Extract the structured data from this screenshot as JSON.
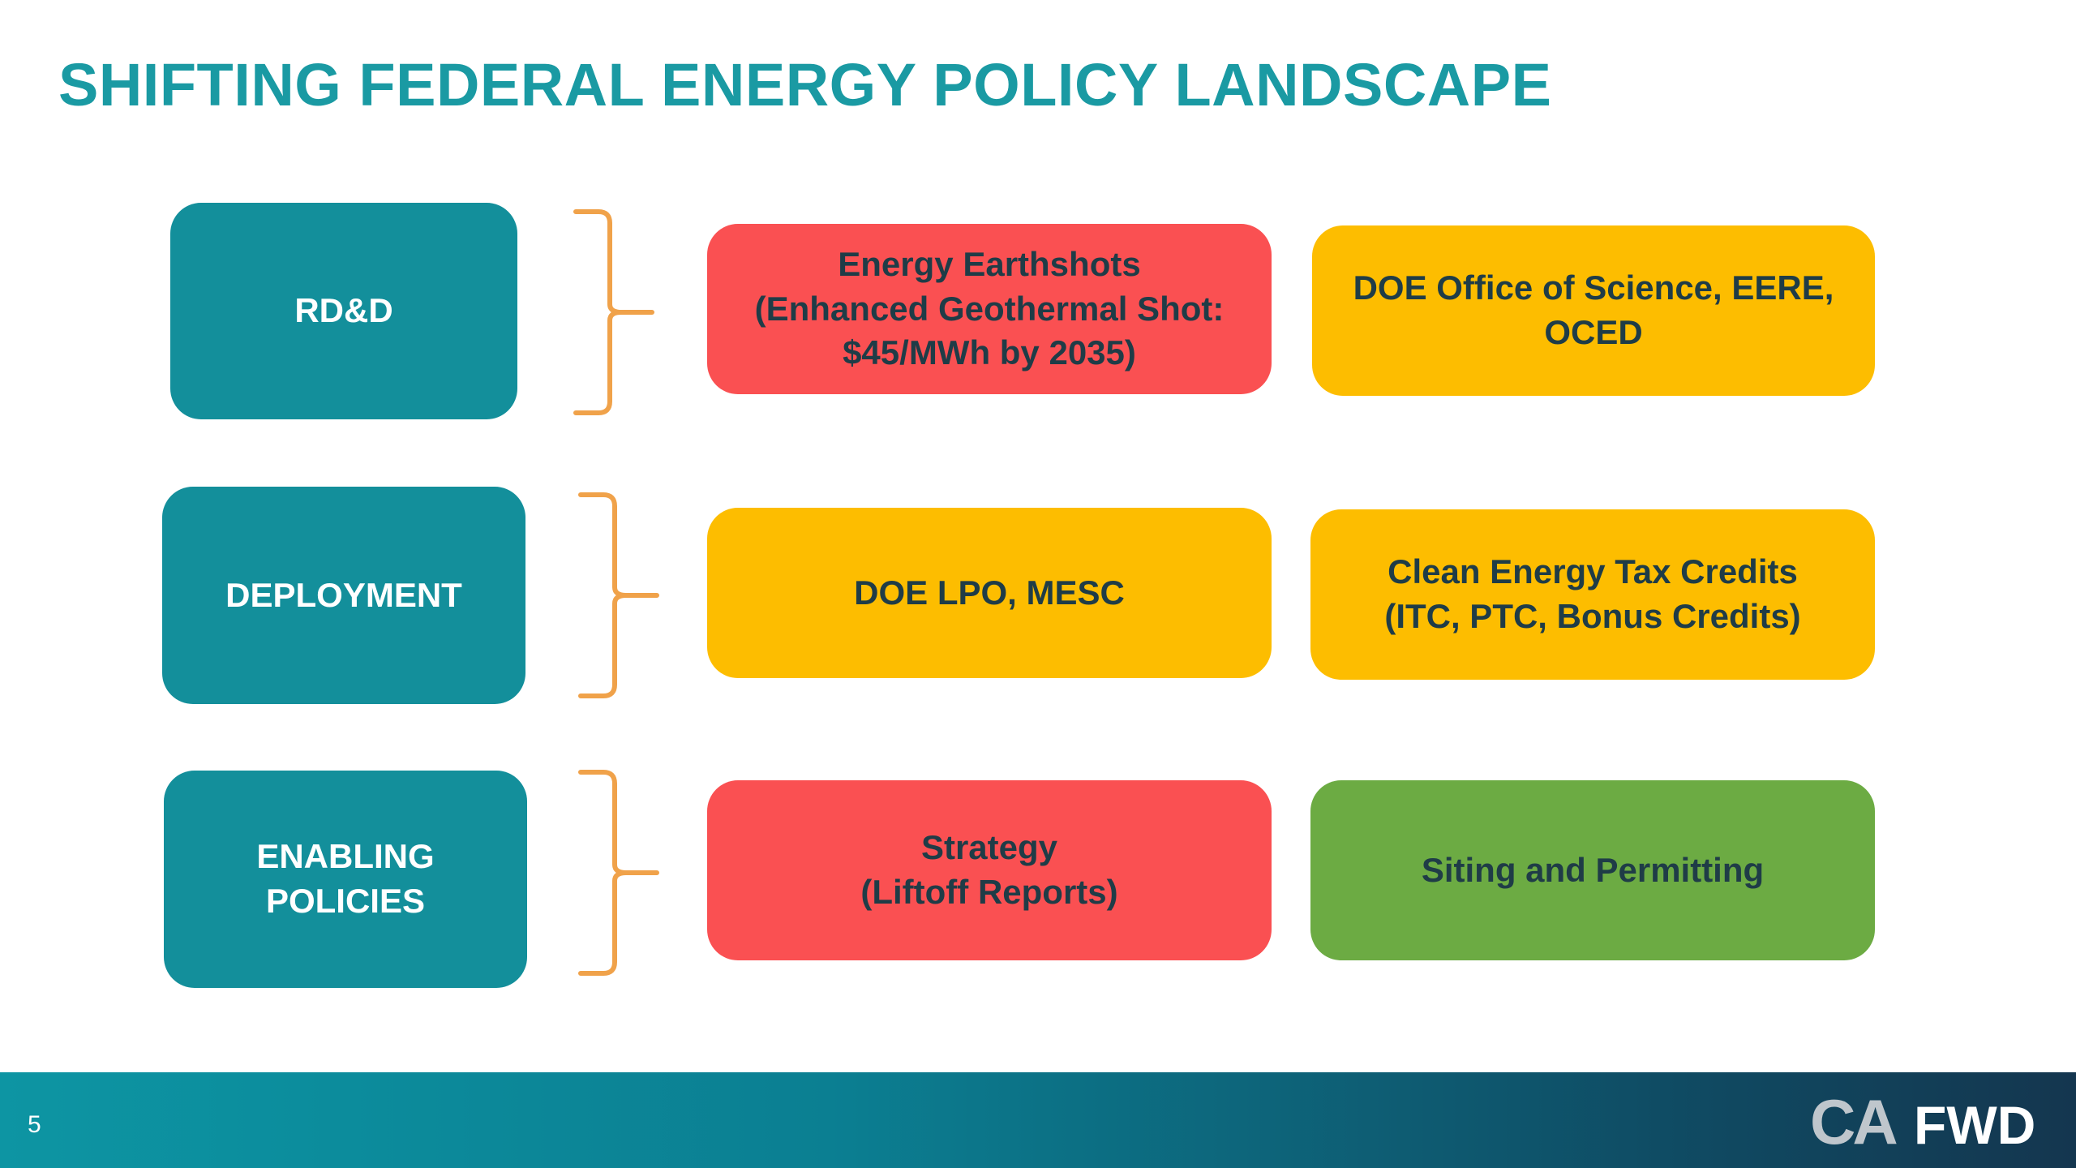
{
  "slide": {
    "title": "SHIFTING FEDERAL ENERGY POLICY LANDSCAPE",
    "page_number": "5"
  },
  "rows": [
    {
      "category": "RD&D",
      "items": [
        {
          "text": "Energy Earthshots\n(Enhanced Geothermal Shot:\n$45/MWh by 2035)",
          "color": "#fa5052"
        },
        {
          "text": "DOE Office of Science, EERE,\nOCED",
          "color": "#fdbd00"
        }
      ]
    },
    {
      "category": "DEPLOYMENT",
      "items": [
        {
          "text": "DOE LPO, MESC",
          "color": "#fdbd00"
        },
        {
          "text": "Clean Energy Tax Credits\n(ITC, PTC, Bonus Credits)",
          "color": "#fdbd00"
        }
      ]
    },
    {
      "category": "ENABLING\nPOLICIES",
      "items": [
        {
          "text": "Strategy\n(Liftoff Reports)",
          "color": "#fa5052"
        },
        {
          "text": "Siting and Permitting",
          "color": "#6cab43"
        }
      ]
    }
  ],
  "logo": {
    "text_ca": "CA",
    "text_fwd": "FWD"
  },
  "colors": {
    "title": "#1a9aa3",
    "category_box": "#138f9b",
    "brace": "#f0a24a",
    "red": "#fa5052",
    "yellow": "#fdbd00",
    "green": "#6cab43",
    "item_text": "#1f3c47"
  }
}
